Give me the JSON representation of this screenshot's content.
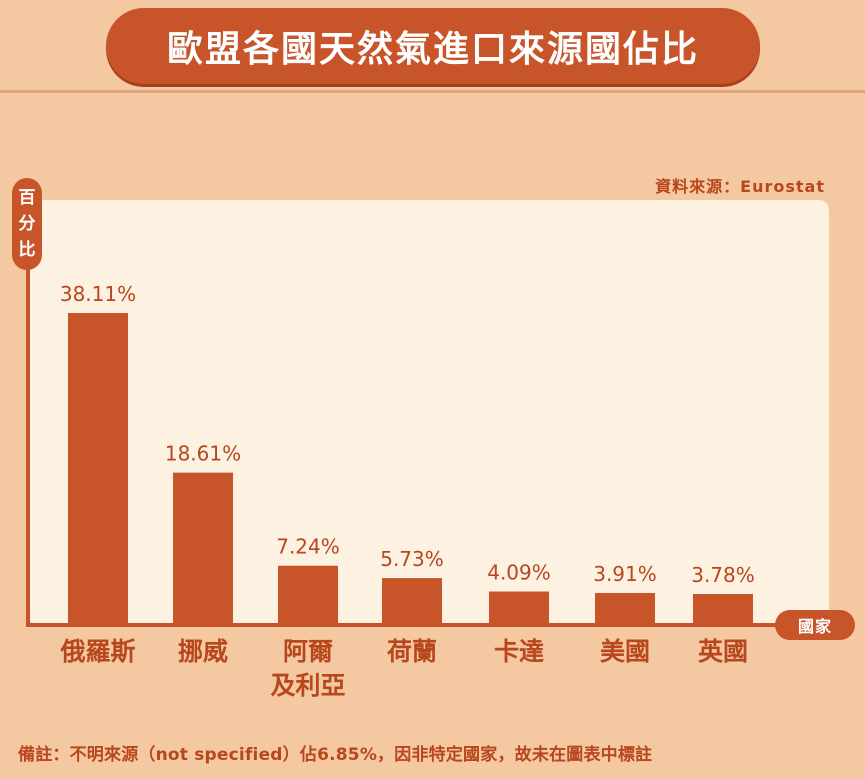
{
  "title": "歐盟各國天然氣進口來源國佔比",
  "source": "資料來源：Eurostat",
  "footnote": "備註：不明來源（not specified）佔6.85%，因非特定國家，故未在圖表中標註",
  "colors": {
    "bar": "#c8542a",
    "label": "#b8471e",
    "panel": "#fdf1e2",
    "background": "#f4c9a2"
  },
  "chart_data": {
    "type": "bar",
    "title": "歐盟各國天然氣進口來源國佔比",
    "ylabel": "百分比",
    "xlabel": "國家",
    "ylim": [
      0,
      45
    ],
    "grid": false,
    "categories": [
      [
        "俄羅斯"
      ],
      [
        "挪威"
      ],
      [
        "阿爾",
        "及利亞"
      ],
      [
        "荷蘭"
      ],
      [
        "卡達"
      ],
      [
        "美國"
      ],
      [
        "英國"
      ]
    ],
    "values": [
      38.11,
      18.61,
      7.24,
      5.73,
      4.09,
      3.91,
      3.78
    ],
    "value_labels": [
      "38.11%",
      "18.61%",
      "7.24%",
      "5.73%",
      "4.09%",
      "3.91%",
      "3.78%"
    ]
  }
}
